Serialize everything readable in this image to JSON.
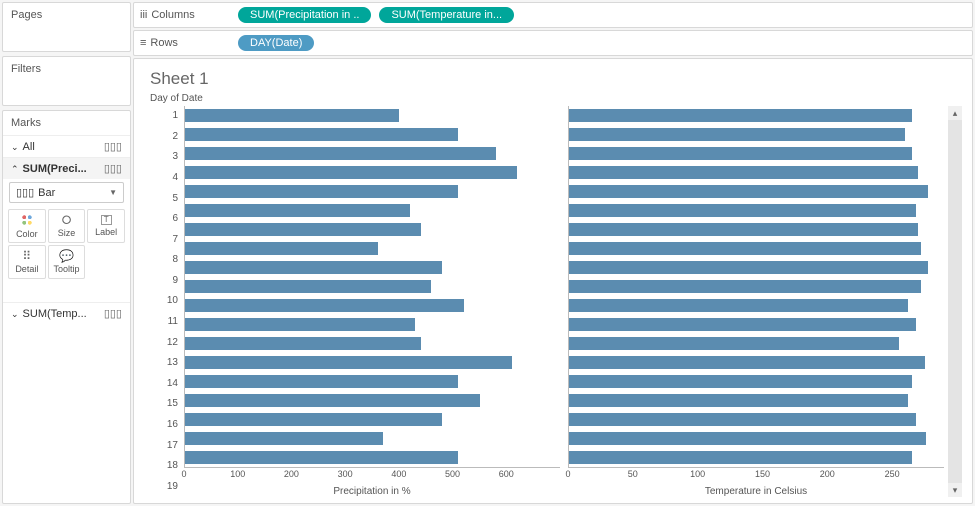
{
  "left": {
    "pages_label": "Pages",
    "filters_label": "Filters",
    "marks_label": "Marks",
    "all_label": "All",
    "card1_label": "SUM(Preci...",
    "card2_label": "SUM(Temp...",
    "mark_type": "Bar",
    "btn_color": "Color",
    "btn_size": "Size",
    "btn_label": "Label",
    "btn_detail": "Detail",
    "btn_tooltip": "Tooltip"
  },
  "shelves": {
    "columns_label": "Columns",
    "rows_label": "Rows",
    "col_pill1": "SUM(Precipitation in ..",
    "col_pill2": "SUM(Temperature in...",
    "row_pill": "DAY(Date)"
  },
  "viz": {
    "title": "Sheet 1",
    "row_header": "Day of Date",
    "bar_color": "#5b8cb0",
    "days": [
      1,
      2,
      3,
      4,
      5,
      6,
      7,
      8,
      9,
      10,
      11,
      12,
      13,
      14,
      15,
      16,
      17,
      18,
      19
    ],
    "chart1": {
      "label": "Precipitation in %",
      "max": 700,
      "ticks": [
        0,
        100,
        200,
        300,
        400,
        500,
        600
      ],
      "values": [
        400,
        510,
        580,
        620,
        510,
        420,
        440,
        360,
        480,
        460,
        520,
        430,
        440,
        610,
        510,
        550,
        480,
        370,
        510
      ]
    },
    "chart2": {
      "label": "Temperature in Celsius",
      "max": 290,
      "ticks": [
        0,
        50,
        100,
        150,
        200,
        250
      ],
      "values": [
        265,
        260,
        265,
        270,
        278,
        268,
        270,
        272,
        278,
        272,
        262,
        268,
        255,
        275,
        265,
        262,
        268,
        276,
        265
      ]
    }
  }
}
